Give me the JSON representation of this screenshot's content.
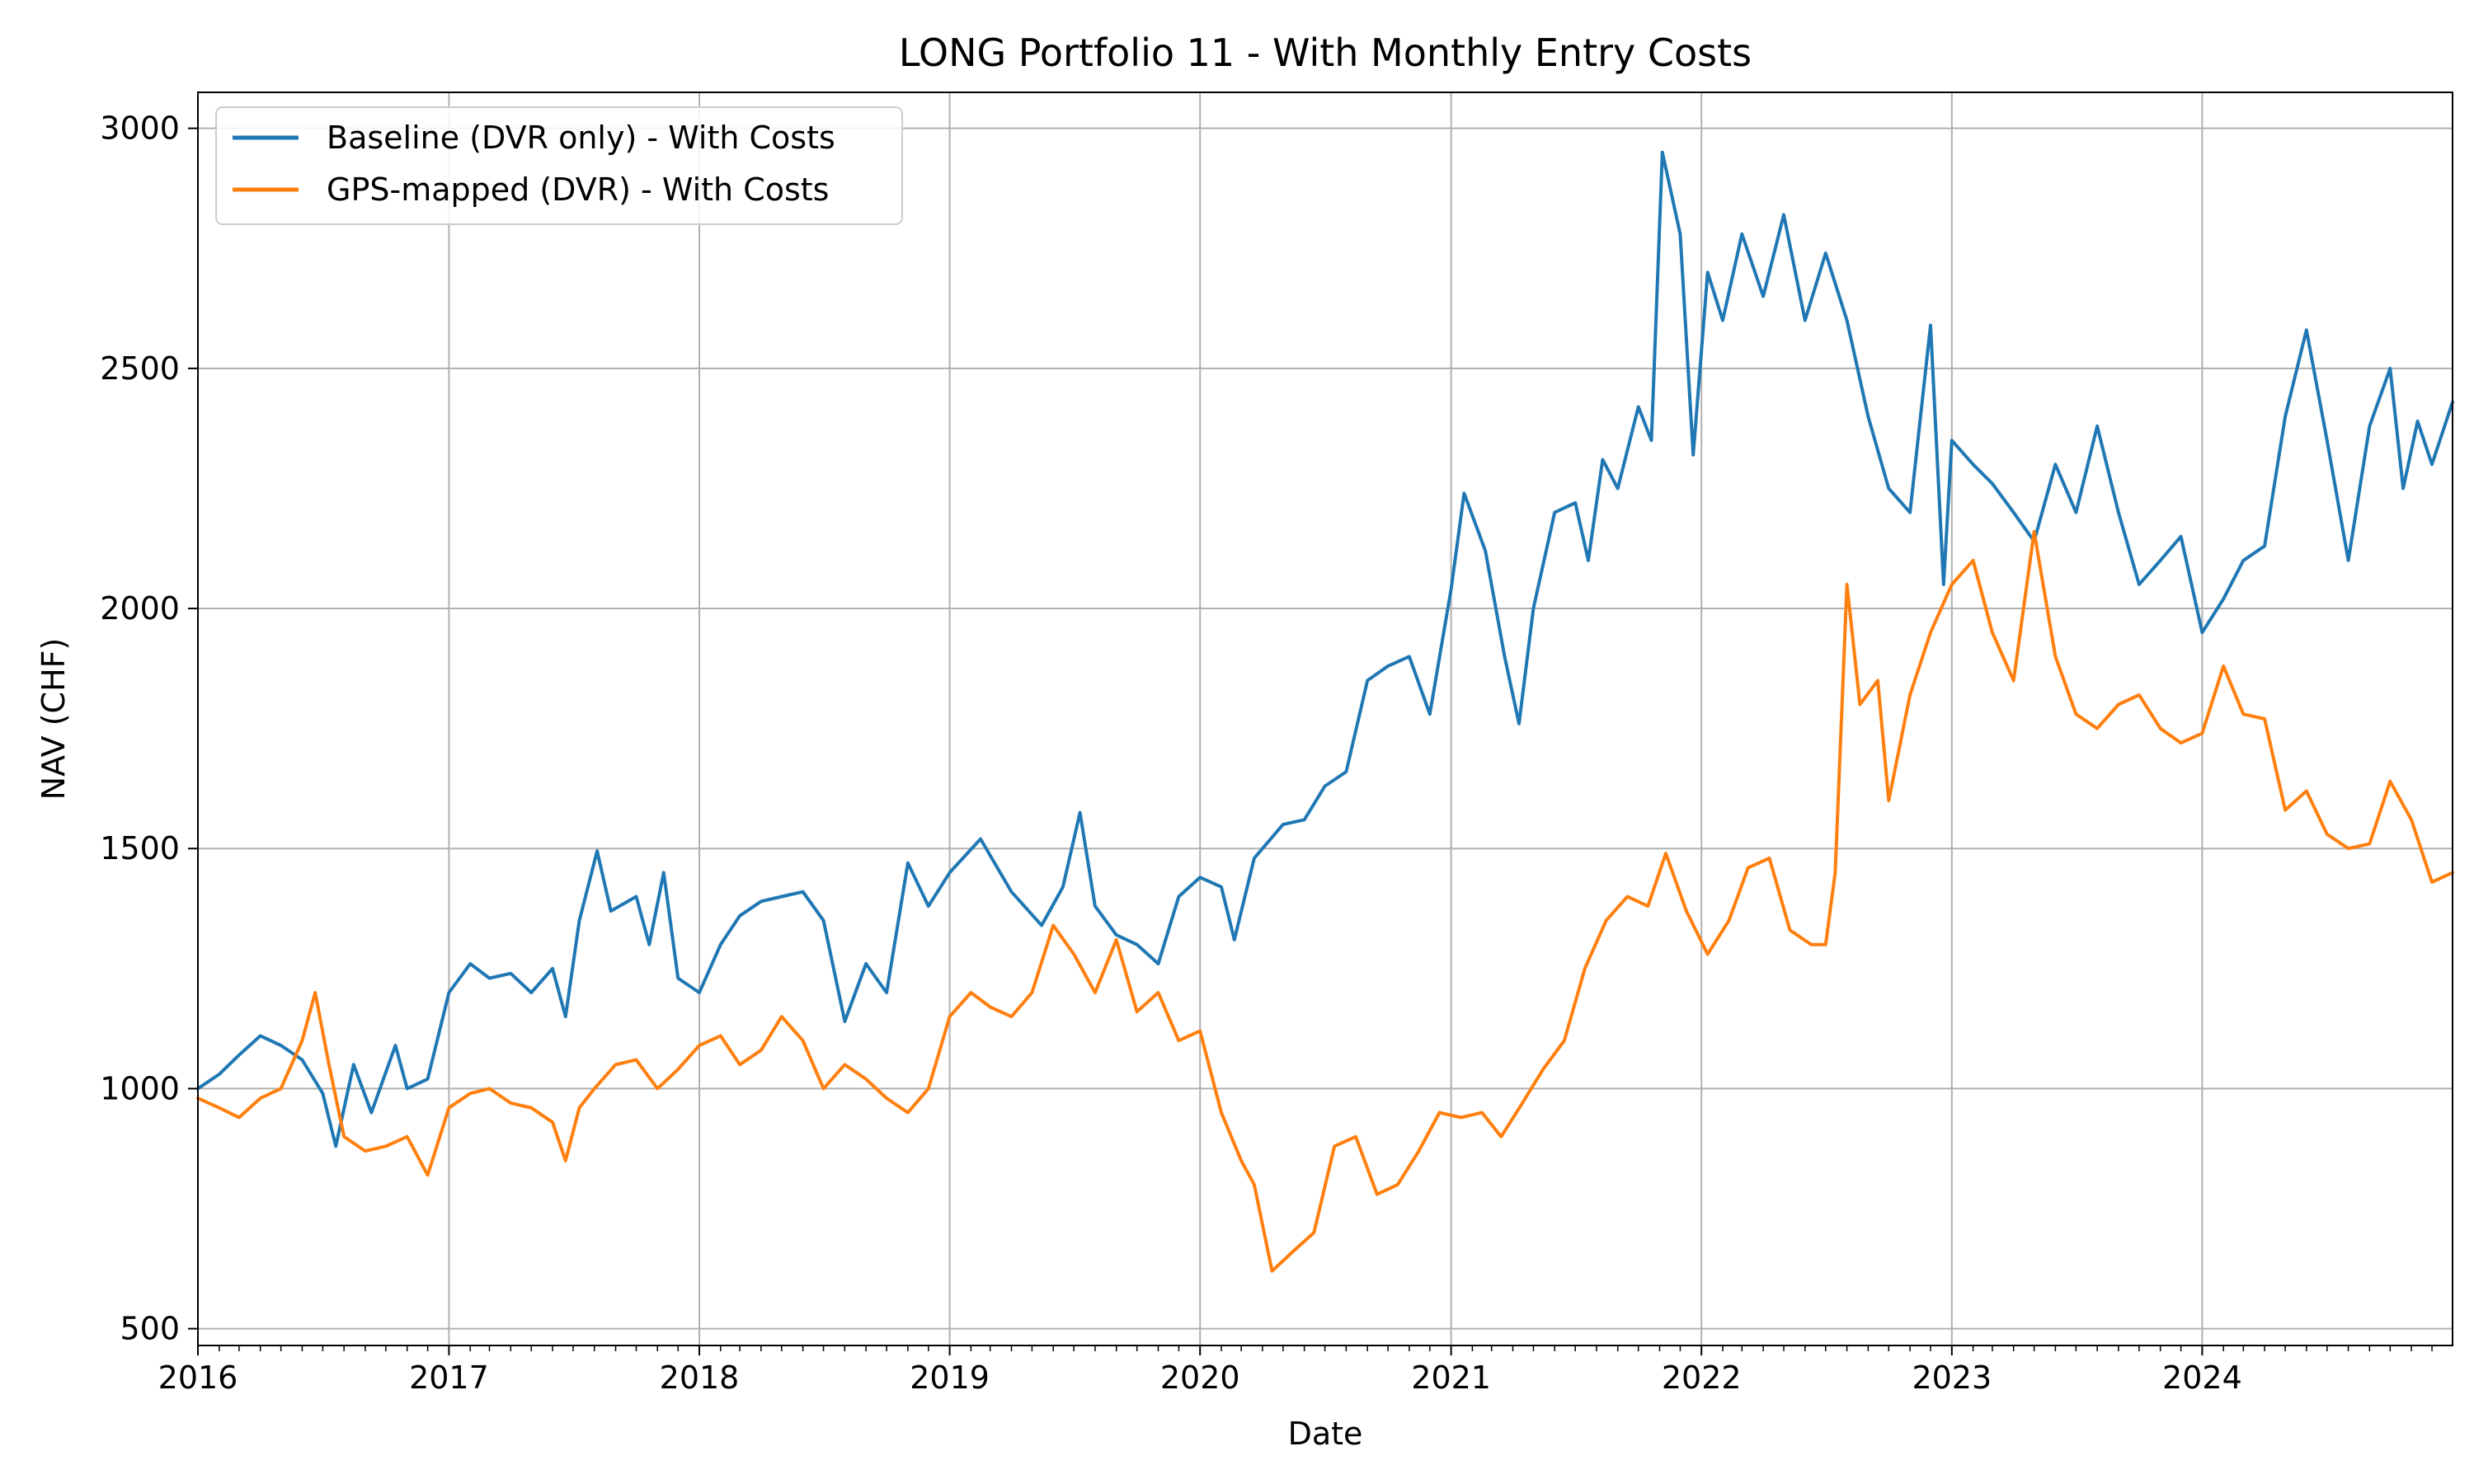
{
  "chart_data": {
    "type": "line",
    "title": "LONG Portfolio 11 - With Monthly Entry Costs",
    "xlabel": "Date",
    "ylabel": "NAV (CHF)",
    "xlim": [
      "2016-01-01",
      "2024-12-31"
    ],
    "ylim": [
      465,
      3075
    ],
    "x_ticks": [
      "2016",
      "2017",
      "2018",
      "2019",
      "2020",
      "2021",
      "2022",
      "2023",
      "2024"
    ],
    "y_ticks": [
      500,
      1000,
      1500,
      2000,
      2500,
      3000
    ],
    "grid": true,
    "legend_position": "top-left",
    "series": [
      {
        "name": "Baseline (DVR only) - With Costs",
        "color": "#1f77b4",
        "points": [
          [
            "2016-01-01",
            1000
          ],
          [
            "2016-02-01",
            1030
          ],
          [
            "2016-03-01",
            1070
          ],
          [
            "2016-04-01",
            1110
          ],
          [
            "2016-05-01",
            1090
          ],
          [
            "2016-06-01",
            1060
          ],
          [
            "2016-07-01",
            990
          ],
          [
            "2016-07-20",
            880
          ],
          [
            "2016-08-15",
            1050
          ],
          [
            "2016-09-10",
            950
          ],
          [
            "2016-10-15",
            1090
          ],
          [
            "2016-11-01",
            1000
          ],
          [
            "2016-12-01",
            1020
          ],
          [
            "2017-01-01",
            1200
          ],
          [
            "2017-02-01",
            1260
          ],
          [
            "2017-03-01",
            1230
          ],
          [
            "2017-04-01",
            1240
          ],
          [
            "2017-05-01",
            1200
          ],
          [
            "2017-06-01",
            1250
          ],
          [
            "2017-06-20",
            1150
          ],
          [
            "2017-07-10",
            1350
          ],
          [
            "2017-08-05",
            1495
          ],
          [
            "2017-08-25",
            1370
          ],
          [
            "2017-10-01",
            1400
          ],
          [
            "2017-10-20",
            1300
          ],
          [
            "2017-11-10",
            1450
          ],
          [
            "2017-12-01",
            1230
          ],
          [
            "2018-01-01",
            1200
          ],
          [
            "2018-02-01",
            1300
          ],
          [
            "2018-03-01",
            1360
          ],
          [
            "2018-04-01",
            1390
          ],
          [
            "2018-05-01",
            1400
          ],
          [
            "2018-06-01",
            1410
          ],
          [
            "2018-07-01",
            1350
          ],
          [
            "2018-08-01",
            1140
          ],
          [
            "2018-09-01",
            1260
          ],
          [
            "2018-10-01",
            1200
          ],
          [
            "2018-11-01",
            1470
          ],
          [
            "2018-12-01",
            1380
          ],
          [
            "2019-01-01",
            1450
          ],
          [
            "2019-02-15",
            1520
          ],
          [
            "2019-04-01",
            1410
          ],
          [
            "2019-05-15",
            1340
          ],
          [
            "2019-06-15",
            1420
          ],
          [
            "2019-07-10",
            1575
          ],
          [
            "2019-08-01",
            1380
          ],
          [
            "2019-09-01",
            1320
          ],
          [
            "2019-10-01",
            1300
          ],
          [
            "2019-11-01",
            1260
          ],
          [
            "2019-12-01",
            1400
          ],
          [
            "2020-01-01",
            1440
          ],
          [
            "2020-02-01",
            1420
          ],
          [
            "2020-02-20",
            1310
          ],
          [
            "2020-03-20",
            1480
          ],
          [
            "2020-05-01",
            1550
          ],
          [
            "2020-06-01",
            1560
          ],
          [
            "2020-07-01",
            1630
          ],
          [
            "2020-08-01",
            1660
          ],
          [
            "2020-09-01",
            1850
          ],
          [
            "2020-10-01",
            1880
          ],
          [
            "2020-11-01",
            1900
          ],
          [
            "2020-12-01",
            1780
          ],
          [
            "2021-01-01",
            2040
          ],
          [
            "2021-01-20",
            2240
          ],
          [
            "2021-02-20",
            2120
          ],
          [
            "2021-03-20",
            1900
          ],
          [
            "2021-04-10",
            1760
          ],
          [
            "2021-05-01",
            2000
          ],
          [
            "2021-06-01",
            2200
          ],
          [
            "2021-07-01",
            2220
          ],
          [
            "2021-07-20",
            2100
          ],
          [
            "2021-08-10",
            2310
          ],
          [
            "2021-09-01",
            2250
          ],
          [
            "2021-10-01",
            2420
          ],
          [
            "2021-10-20",
            2350
          ],
          [
            "2021-11-05",
            2950
          ],
          [
            "2021-12-01",
            2780
          ],
          [
            "2021-12-20",
            2320
          ],
          [
            "2022-01-10",
            2700
          ],
          [
            "2022-02-01",
            2600
          ],
          [
            "2022-03-01",
            2780
          ],
          [
            "2022-04-01",
            2650
          ],
          [
            "2022-05-01",
            2820
          ],
          [
            "2022-06-01",
            2600
          ],
          [
            "2022-07-01",
            2740
          ],
          [
            "2022-08-01",
            2600
          ],
          [
            "2022-09-01",
            2400
          ],
          [
            "2022-10-01",
            2250
          ],
          [
            "2022-11-01",
            2200
          ],
          [
            "2022-12-01",
            2590
          ],
          [
            "2022-12-20",
            2050
          ],
          [
            "2023-01-01",
            2350
          ],
          [
            "2023-02-01",
            2300
          ],
          [
            "2023-03-01",
            2260
          ],
          [
            "2023-04-01",
            2200
          ],
          [
            "2023-05-01",
            2140
          ],
          [
            "2023-06-01",
            2300
          ],
          [
            "2023-07-01",
            2200
          ],
          [
            "2023-08-01",
            2380
          ],
          [
            "2023-09-01",
            2200
          ],
          [
            "2023-10-01",
            2050
          ],
          [
            "2023-11-01",
            2100
          ],
          [
            "2023-12-01",
            2150
          ],
          [
            "2024-01-01",
            1950
          ],
          [
            "2024-02-01",
            2020
          ],
          [
            "2024-03-01",
            2100
          ],
          [
            "2024-04-01",
            2130
          ],
          [
            "2024-05-01",
            2400
          ],
          [
            "2024-06-01",
            2580
          ],
          [
            "2024-07-01",
            2350
          ],
          [
            "2024-08-01",
            2100
          ],
          [
            "2024-09-01",
            2380
          ],
          [
            "2024-10-01",
            2500
          ],
          [
            "2024-10-20",
            2250
          ],
          [
            "2024-11-10",
            2390
          ],
          [
            "2024-12-01",
            2300
          ],
          [
            "2024-12-31",
            2430
          ]
        ]
      },
      {
        "name": "GPS-mapped (DVR) - With Costs",
        "color": "#ff7f0e",
        "points": [
          [
            "2016-01-01",
            980
          ],
          [
            "2016-02-01",
            960
          ],
          [
            "2016-03-01",
            940
          ],
          [
            "2016-04-01",
            980
          ],
          [
            "2016-05-01",
            1000
          ],
          [
            "2016-06-01",
            1100
          ],
          [
            "2016-06-20",
            1200
          ],
          [
            "2016-07-10",
            1050
          ],
          [
            "2016-08-01",
            900
          ],
          [
            "2016-09-01",
            870
          ],
          [
            "2016-10-01",
            880
          ],
          [
            "2016-11-01",
            900
          ],
          [
            "2016-12-01",
            820
          ],
          [
            "2017-01-01",
            960
          ],
          [
            "2017-02-01",
            990
          ],
          [
            "2017-03-01",
            1000
          ],
          [
            "2017-04-01",
            970
          ],
          [
            "2017-05-01",
            960
          ],
          [
            "2017-06-01",
            930
          ],
          [
            "2017-06-20",
            850
          ],
          [
            "2017-07-10",
            960
          ],
          [
            "2017-08-01",
            1000
          ],
          [
            "2017-09-01",
            1050
          ],
          [
            "2017-10-01",
            1060
          ],
          [
            "2017-11-01",
            1000
          ],
          [
            "2017-12-01",
            1040
          ],
          [
            "2018-01-01",
            1090
          ],
          [
            "2018-02-01",
            1110
          ],
          [
            "2018-03-01",
            1050
          ],
          [
            "2018-04-01",
            1080
          ],
          [
            "2018-05-01",
            1150
          ],
          [
            "2018-06-01",
            1100
          ],
          [
            "2018-07-01",
            1000
          ],
          [
            "2018-08-01",
            1050
          ],
          [
            "2018-09-01",
            1020
          ],
          [
            "2018-10-01",
            980
          ],
          [
            "2018-11-01",
            950
          ],
          [
            "2018-12-01",
            1000
          ],
          [
            "2019-01-01",
            1150
          ],
          [
            "2019-02-01",
            1200
          ],
          [
            "2019-03-01",
            1170
          ],
          [
            "2019-04-01",
            1150
          ],
          [
            "2019-05-01",
            1200
          ],
          [
            "2019-06-01",
            1340
          ],
          [
            "2019-07-01",
            1280
          ],
          [
            "2019-08-01",
            1200
          ],
          [
            "2019-09-01",
            1310
          ],
          [
            "2019-10-01",
            1160
          ],
          [
            "2019-11-01",
            1200
          ],
          [
            "2019-12-01",
            1100
          ],
          [
            "2020-01-01",
            1120
          ],
          [
            "2020-02-01",
            950
          ],
          [
            "2020-03-01",
            850
          ],
          [
            "2020-03-20",
            800
          ],
          [
            "2020-04-15",
            620
          ],
          [
            "2020-05-15",
            660
          ],
          [
            "2020-06-15",
            700
          ],
          [
            "2020-07-15",
            880
          ],
          [
            "2020-08-15",
            900
          ],
          [
            "2020-09-15",
            780
          ],
          [
            "2020-10-15",
            800
          ],
          [
            "2020-11-15",
            870
          ],
          [
            "2020-12-15",
            950
          ],
          [
            "2021-01-15",
            940
          ],
          [
            "2021-02-15",
            950
          ],
          [
            "2021-03-15",
            900
          ],
          [
            "2021-04-15",
            970
          ],
          [
            "2021-05-15",
            1040
          ],
          [
            "2021-06-15",
            1100
          ],
          [
            "2021-07-15",
            1250
          ],
          [
            "2021-08-15",
            1350
          ],
          [
            "2021-09-15",
            1400
          ],
          [
            "2021-10-15",
            1380
          ],
          [
            "2021-11-10",
            1490
          ],
          [
            "2021-12-10",
            1370
          ],
          [
            "2022-01-10",
            1280
          ],
          [
            "2022-02-10",
            1350
          ],
          [
            "2022-03-10",
            1460
          ],
          [
            "2022-04-10",
            1480
          ],
          [
            "2022-05-10",
            1330
          ],
          [
            "2022-06-10",
            1300
          ],
          [
            "2022-07-01",
            1300
          ],
          [
            "2022-07-15",
            1450
          ],
          [
            "2022-08-01",
            2050
          ],
          [
            "2022-08-20",
            1800
          ],
          [
            "2022-09-15",
            1850
          ],
          [
            "2022-10-01",
            1600
          ],
          [
            "2022-11-01",
            1820
          ],
          [
            "2022-12-01",
            1950
          ],
          [
            "2023-01-01",
            2050
          ],
          [
            "2023-02-01",
            2100
          ],
          [
            "2023-03-01",
            1950
          ],
          [
            "2023-04-01",
            1850
          ],
          [
            "2023-05-01",
            2160
          ],
          [
            "2023-06-01",
            1900
          ],
          [
            "2023-07-01",
            1780
          ],
          [
            "2023-08-01",
            1750
          ],
          [
            "2023-09-01",
            1800
          ],
          [
            "2023-10-01",
            1820
          ],
          [
            "2023-11-01",
            1750
          ],
          [
            "2023-12-01",
            1720
          ],
          [
            "2024-01-01",
            1740
          ],
          [
            "2024-02-01",
            1880
          ],
          [
            "2024-03-01",
            1780
          ],
          [
            "2024-04-01",
            1770
          ],
          [
            "2024-05-01",
            1580
          ],
          [
            "2024-06-01",
            1620
          ],
          [
            "2024-07-01",
            1530
          ],
          [
            "2024-08-01",
            1500
          ],
          [
            "2024-09-01",
            1510
          ],
          [
            "2024-10-01",
            1640
          ],
          [
            "2024-11-01",
            1560
          ],
          [
            "2024-12-01",
            1430
          ],
          [
            "2024-12-31",
            1450
          ]
        ]
      }
    ]
  }
}
